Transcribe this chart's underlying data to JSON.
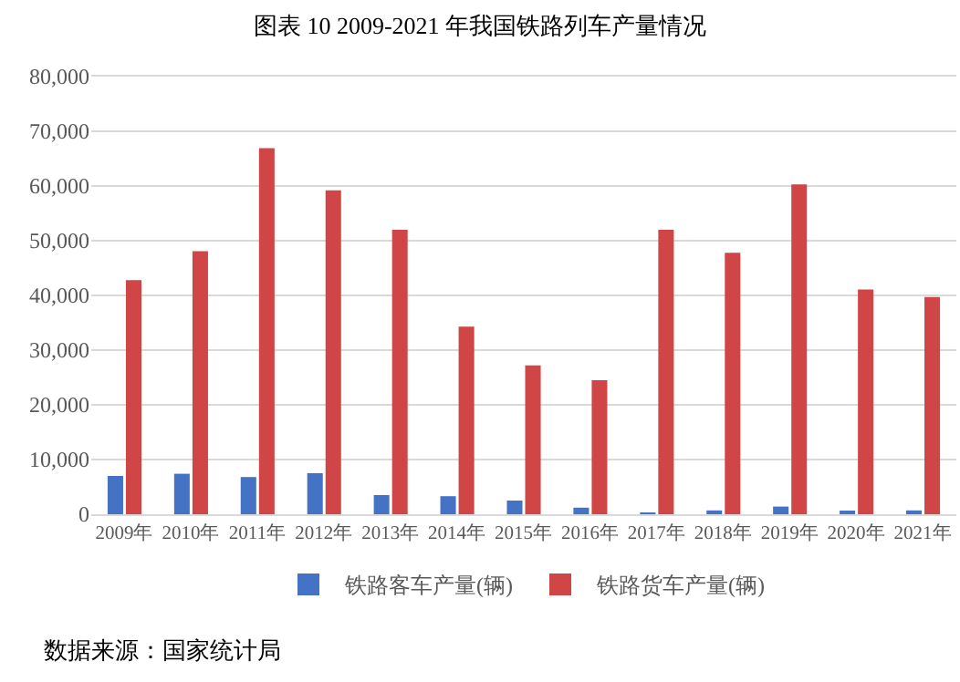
{
  "chart_data": {
    "type": "bar",
    "title": "图表 10 2009-2021 年我国铁路列车产量情况",
    "categories": [
      "2009年",
      "2010年",
      "2011年",
      "2012年",
      "2013年",
      "2014年",
      "2015年",
      "2016年",
      "2017年",
      "2018年",
      "2019年",
      "2020年",
      "2021年"
    ],
    "series": [
      {
        "name": "铁路客车产量(辆)",
        "color": "#4472c4",
        "values": [
          7000,
          7400,
          6800,
          7500,
          3500,
          3300,
          2500,
          1200,
          300,
          700,
          1400,
          400,
          700
        ]
      },
      {
        "name": "铁路货车产量(辆)",
        "color": "#d04545",
        "values": [
          42800,
          48100,
          66900,
          59200,
          52000,
          34300,
          27200,
          24500,
          52000,
          47800,
          60300,
          41100,
          39700
        ]
      }
    ],
    "ylim": [
      0,
      80000
    ],
    "yticks": [
      {
        "value": 0,
        "label": "0"
      },
      {
        "value": 10000,
        "label": "10,000"
      },
      {
        "value": 20000,
        "label": "20,000"
      },
      {
        "value": 30000,
        "label": "30,000"
      },
      {
        "value": 40000,
        "label": "40,000"
      },
      {
        "value": 50000,
        "label": "50,000"
      },
      {
        "value": 60000,
        "label": "60,000"
      },
      {
        "value": 70000,
        "label": "70,000"
      },
      {
        "value": 80000,
        "label": "80,000"
      }
    ],
    "grid": "y",
    "legend": "bottom",
    "annotations": [
      "数据来源：国家统计局"
    ]
  }
}
